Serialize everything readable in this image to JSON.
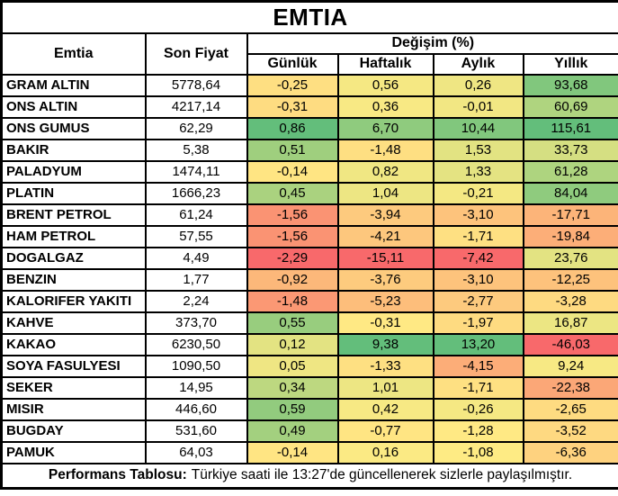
{
  "title": "EMTIA",
  "header": {
    "emtia": "Emtia",
    "son_fiyat": "Son Fiyat",
    "degisim": "Değişim (%)",
    "gunluk": "Günlük",
    "haftalik": "Haftalık",
    "aylik": "Aylık",
    "yillik": "Yıllık"
  },
  "footer": {
    "label": "Performans Tablosu:",
    "text": "Türkiye saati ile 13:27'de güncellenerek sizlerle paylaşılmıştır."
  },
  "colors": {
    "scale_min": "#F8696B",
    "scale_mid": "#FFEB84",
    "scale_max": "#63BE7B",
    "border": "#000000",
    "background": "#FFFFFF",
    "text": "#000000"
  },
  "number_format": "comma-decimal-2",
  "chart_data": {
    "type": "table",
    "title": "EMTIA",
    "columns": [
      "Emtia",
      "Son Fiyat",
      "Günlük",
      "Haftalık",
      "Aylık",
      "Yıllık"
    ],
    "heatmap": "per-column 3-color scale: min #F8696B, median #FFEB84, max #63BE7B",
    "rows": [
      {
        "emtia": "GRAM ALTIN",
        "son_fiyat": 5778.64,
        "gunluk": -0.25,
        "haftalik": 0.56,
        "aylik": 0.26,
        "yillik": 93.68
      },
      {
        "emtia": "ONS ALTIN",
        "son_fiyat": 4217.14,
        "gunluk": -0.31,
        "haftalik": 0.36,
        "aylik": -0.01,
        "yillik": 60.69
      },
      {
        "emtia": "ONS GUMUS",
        "son_fiyat": 62.29,
        "gunluk": 0.86,
        "haftalik": 6.7,
        "aylik": 10.44,
        "yillik": 115.61
      },
      {
        "emtia": "BAKIR",
        "son_fiyat": 5.38,
        "gunluk": 0.51,
        "haftalik": -1.48,
        "aylik": 1.53,
        "yillik": 33.73
      },
      {
        "emtia": "PALADYUM",
        "son_fiyat": 1474.11,
        "gunluk": -0.14,
        "haftalik": 0.82,
        "aylik": 1.33,
        "yillik": 61.28
      },
      {
        "emtia": "PLATIN",
        "son_fiyat": 1666.23,
        "gunluk": 0.45,
        "haftalik": 1.04,
        "aylik": -0.21,
        "yillik": 84.04
      },
      {
        "emtia": "BRENT PETROL",
        "son_fiyat": 61.24,
        "gunluk": -1.56,
        "haftalik": -3.94,
        "aylik": -3.1,
        "yillik": -17.71
      },
      {
        "emtia": "HAM PETROL",
        "son_fiyat": 57.55,
        "gunluk": -1.56,
        "haftalik": -4.21,
        "aylik": -1.71,
        "yillik": -19.84
      },
      {
        "emtia": "DOGALGAZ",
        "son_fiyat": 4.49,
        "gunluk": -2.29,
        "haftalik": -15.11,
        "aylik": -7.42,
        "yillik": 23.76
      },
      {
        "emtia": "BENZIN",
        "son_fiyat": 1.77,
        "gunluk": -0.92,
        "haftalik": -3.76,
        "aylik": -3.1,
        "yillik": -12.25
      },
      {
        "emtia": "KALORIFER YAKITI",
        "son_fiyat": 2.24,
        "gunluk": -1.48,
        "haftalik": -5.23,
        "aylik": -2.77,
        "yillik": -3.28
      },
      {
        "emtia": "KAHVE",
        "son_fiyat": 373.7,
        "gunluk": 0.55,
        "haftalik": -0.31,
        "aylik": -1.97,
        "yillik": 16.87
      },
      {
        "emtia": "KAKAO",
        "son_fiyat": 6230.5,
        "gunluk": 0.12,
        "haftalik": 9.38,
        "aylik": 13.2,
        "yillik": -46.03
      },
      {
        "emtia": "SOYA FASULYESI",
        "son_fiyat": 1090.5,
        "gunluk": 0.05,
        "haftalik": -1.33,
        "aylik": -4.15,
        "yillik": 9.24
      },
      {
        "emtia": "SEKER",
        "son_fiyat": 14.95,
        "gunluk": 0.34,
        "haftalik": 1.01,
        "aylik": -1.71,
        "yillik": -22.38
      },
      {
        "emtia": "MISIR",
        "son_fiyat": 446.6,
        "gunluk": 0.59,
        "haftalik": 0.42,
        "aylik": -0.26,
        "yillik": -2.65
      },
      {
        "emtia": "BUGDAY",
        "son_fiyat": 531.6,
        "gunluk": 0.49,
        "haftalik": -0.77,
        "aylik": -1.28,
        "yillik": -3.52
      },
      {
        "emtia": "PAMUK",
        "son_fiyat": 64.03,
        "gunluk": -0.14,
        "haftalik": 0.16,
        "aylik": -1.08,
        "yillik": -6.36
      }
    ]
  }
}
